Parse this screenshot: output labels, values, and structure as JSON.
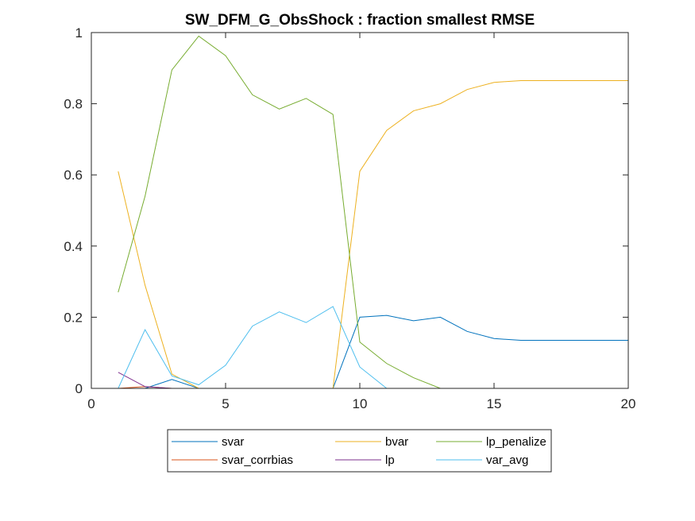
{
  "chart_data": {
    "type": "line",
    "title": "SW_DFM_G_ObsShock : fraction smallest RMSE",
    "xlabel": "",
    "ylabel": "",
    "xlim": [
      0,
      20
    ],
    "ylim": [
      0,
      1
    ],
    "x_ticks": [
      0,
      5,
      10,
      15,
      20
    ],
    "x_tick_labels": [
      "0",
      "5",
      "10",
      "15",
      "20"
    ],
    "y_ticks": [
      0,
      0.2,
      0.4,
      0.6,
      0.8,
      1
    ],
    "y_tick_labels": [
      "0",
      "0.2",
      "0.4",
      "0.6",
      "0.8",
      "1"
    ],
    "grid": false,
    "legend_placement": "bottom-outside",
    "x": [
      1,
      2,
      3,
      4,
      5,
      6,
      7,
      8,
      9,
      10,
      11,
      12,
      13,
      14,
      15,
      16,
      17,
      18,
      19,
      20
    ],
    "series": [
      {
        "name": "svar",
        "color": "#0072BD",
        "values": [
          0,
          0,
          0.025,
          0,
          0,
          0,
          0,
          0,
          0,
          0.2,
          0.205,
          0.19,
          0.2,
          0.16,
          0.14,
          0.135,
          0.135,
          0.135,
          0.135,
          0.135
        ]
      },
      {
        "name": "bvar",
        "color": "#EDB120",
        "values": [
          0.61,
          0.29,
          0.04,
          0,
          0,
          0,
          0,
          0,
          0,
          0.61,
          0.725,
          0.78,
          0.8,
          0.84,
          0.86,
          0.865,
          0.865,
          0.865,
          0.865,
          0.865
        ]
      },
      {
        "name": "lp_penalize",
        "color": "#77AC30",
        "values": [
          0.27,
          0.54,
          0.895,
          0.99,
          0.935,
          0.825,
          0.785,
          0.815,
          0.77,
          0.13,
          0.07,
          0.03,
          0,
          0,
          0,
          0,
          0,
          0,
          0,
          0
        ]
      },
      {
        "name": "svar_corrbias",
        "color": "#D95319",
        "values": [
          0,
          0.005,
          0,
          0,
          0,
          0,
          0,
          0,
          0,
          0,
          0,
          0,
          0,
          0,
          0,
          0,
          0,
          0,
          0,
          0
        ]
      },
      {
        "name": "lp",
        "color": "#7E2F8E",
        "values": [
          0.045,
          0.005,
          0,
          0,
          0,
          0,
          0,
          0,
          0,
          0,
          0,
          0,
          0,
          0,
          0,
          0,
          0,
          0,
          0,
          0
        ]
      },
      {
        "name": "var_avg",
        "color": "#4DBEEE",
        "values": [
          0,
          0.165,
          0.035,
          0.01,
          0.065,
          0.175,
          0.215,
          0.185,
          0.23,
          0.06,
          0,
          0,
          0,
          0,
          0,
          0,
          0,
          0,
          0,
          0
        ]
      }
    ]
  }
}
